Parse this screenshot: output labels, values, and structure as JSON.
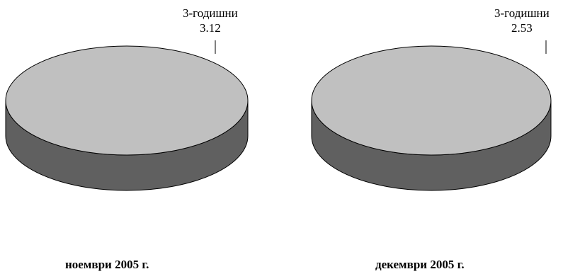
{
  "chart_data": [
    {
      "type": "pie",
      "title": "ноември 2005 г.",
      "categories": [
        "3-годишни"
      ],
      "values": [
        3.12
      ],
      "value_labels": [
        "3.12"
      ],
      "colors": {
        "top": "#c0c0c0",
        "side": "#606060",
        "outline": "#000000"
      }
    },
    {
      "type": "pie",
      "title": "декември 2005 г.",
      "categories": [
        "3-годишни"
      ],
      "values": [
        2.53
      ],
      "value_labels": [
        "2.53"
      ],
      "colors": {
        "top": "#c0c0c0",
        "side": "#606060",
        "outline": "#000000"
      }
    }
  ]
}
